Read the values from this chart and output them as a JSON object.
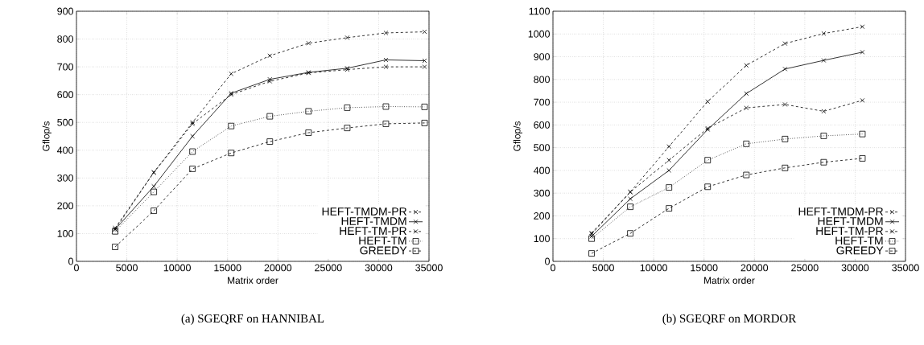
{
  "chart_data": [
    {
      "type": "line",
      "title": "(a) SGEQRF on HANNIBAL",
      "xlabel": "Matrix order",
      "ylabel": "Gflop/s",
      "x": [
        3840,
        7680,
        11520,
        15360,
        19200,
        23040,
        26880,
        30720,
        34560
      ],
      "xlim": [
        0,
        35000
      ],
      "ylim": [
        0,
        900
      ],
      "xticks": [
        0,
        5000,
        10000,
        15000,
        20000,
        25000,
        30000,
        35000
      ],
      "yticks": [
        0,
        100,
        200,
        300,
        400,
        500,
        600,
        700,
        800,
        900
      ],
      "grid": true,
      "legend": "bottom right",
      "series": [
        {
          "name": "HEFT-TMDM-PR",
          "color": "#000000",
          "marker": "cross",
          "line_style": "dashed",
          "values": [
            115,
            320,
            500,
            675,
            740,
            785,
            805,
            822,
            826
          ]
        },
        {
          "name": "HEFT-TMDM",
          "color": "#000000",
          "marker": "cross",
          "line_style": "solid",
          "values": [
            115,
            270,
            450,
            605,
            655,
            680,
            695,
            725,
            722
          ]
        },
        {
          "name": "HEFT-TM-PR",
          "color": "#000000",
          "marker": "cross",
          "line_style": "dashed",
          "values": [
            120,
            320,
            495,
            600,
            648,
            678,
            690,
            700,
            700
          ]
        },
        {
          "name": "HEFT-TM",
          "color": "#000000",
          "marker": "square",
          "line_style": "dotted",
          "values": [
            108,
            250,
            395,
            487,
            522,
            540,
            553,
            557,
            556
          ]
        },
        {
          "name": "GREEDY",
          "color": "#000000",
          "marker": "square",
          "line_style": "dashed",
          "values": [
            52,
            182,
            333,
            390,
            431,
            463,
            480,
            495,
            498
          ]
        }
      ]
    },
    {
      "type": "line",
      "title": "(b) SGEQRF on MORDOR",
      "xlabel": "Matrix order",
      "ylabel": "Gflop/s",
      "x": [
        3840,
        7680,
        11520,
        15360,
        19200,
        23040,
        26880,
        30720
      ],
      "xlim": [
        0,
        35000
      ],
      "ylim": [
        0,
        1100
      ],
      "xticks": [
        0,
        5000,
        10000,
        15000,
        20000,
        25000,
        30000,
        35000
      ],
      "yticks": [
        0,
        100,
        200,
        300,
        400,
        500,
        600,
        700,
        800,
        900,
        1000,
        1100
      ],
      "grid": true,
      "legend": "bottom right",
      "series": [
        {
          "name": "HEFT-TMDM-PR",
          "color": "#000000",
          "marker": "cross",
          "line_style": "dashed",
          "values": [
            120,
            305,
            505,
            703,
            862,
            958,
            1002,
            1032
          ]
        },
        {
          "name": "HEFT-TMDM",
          "color": "#000000",
          "marker": "cross",
          "line_style": "solid",
          "values": [
            110,
            275,
            400,
            580,
            738,
            846,
            884,
            920
          ]
        },
        {
          "name": "HEFT-TM-PR",
          "color": "#000000",
          "marker": "cross",
          "line_style": "dashed",
          "values": [
            125,
            305,
            445,
            585,
            675,
            690,
            660,
            708
          ]
        },
        {
          "name": "HEFT-TM",
          "color": "#000000",
          "marker": "square",
          "line_style": "dotted",
          "values": [
            100,
            240,
            325,
            445,
            517,
            538,
            552,
            560
          ]
        },
        {
          "name": "GREEDY",
          "color": "#000000",
          "marker": "square",
          "line_style": "dashed",
          "values": [
            35,
            123,
            233,
            328,
            380,
            411,
            436,
            453
          ]
        }
      ]
    }
  ]
}
